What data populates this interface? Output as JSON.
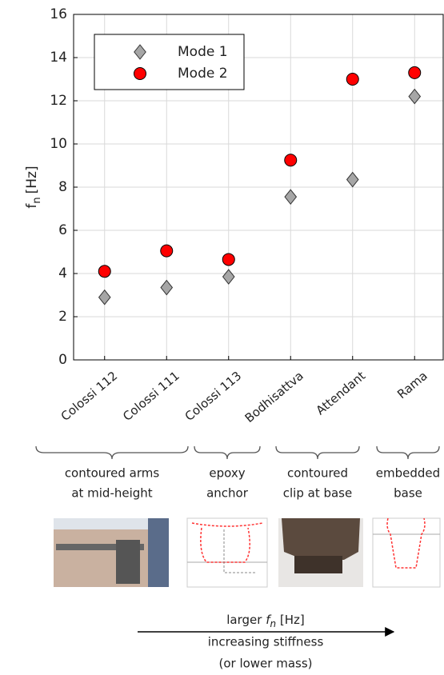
{
  "chart_data": {
    "type": "scatter",
    "ylabel": {
      "symbol": "f",
      "subscript": "n",
      "unit": "[Hz]"
    },
    "categories": [
      "Colossi 112",
      "Colossi 111",
      "Colossi 113",
      "Bodhisattva",
      "Attendant",
      "Rama"
    ],
    "series": [
      {
        "name": "Mode 1",
        "color": "#a6a6a6",
        "marker": "diamond",
        "values": [
          2.9,
          3.35,
          3.85,
          7.55,
          8.35,
          12.2
        ]
      },
      {
        "name": "Mode 2",
        "color": "#ff0000",
        "marker": "circle",
        "values": [
          4.1,
          5.05,
          4.65,
          9.25,
          13.0,
          13.3
        ]
      }
    ],
    "ylim": [
      0,
      16
    ],
    "yticks": [
      0,
      2,
      4,
      6,
      8,
      10,
      12,
      14,
      16
    ],
    "grid": true,
    "legend": "upper left",
    "groups": [
      {
        "lines": [
          "contoured arms",
          "at mid-height"
        ]
      },
      {
        "lines": [
          "epoxy",
          "anchor"
        ]
      },
      {
        "lines": [
          "contoured",
          "clip at base"
        ]
      },
      {
        "lines": [
          "embedded",
          "base"
        ]
      }
    ],
    "arrow_label": {
      "prefix": "larger ",
      "symbol": "f",
      "subscript": "n",
      "unit": " [Hz]",
      "lines": [
        "increasing stiffness",
        "(or lower mass)"
      ]
    }
  }
}
